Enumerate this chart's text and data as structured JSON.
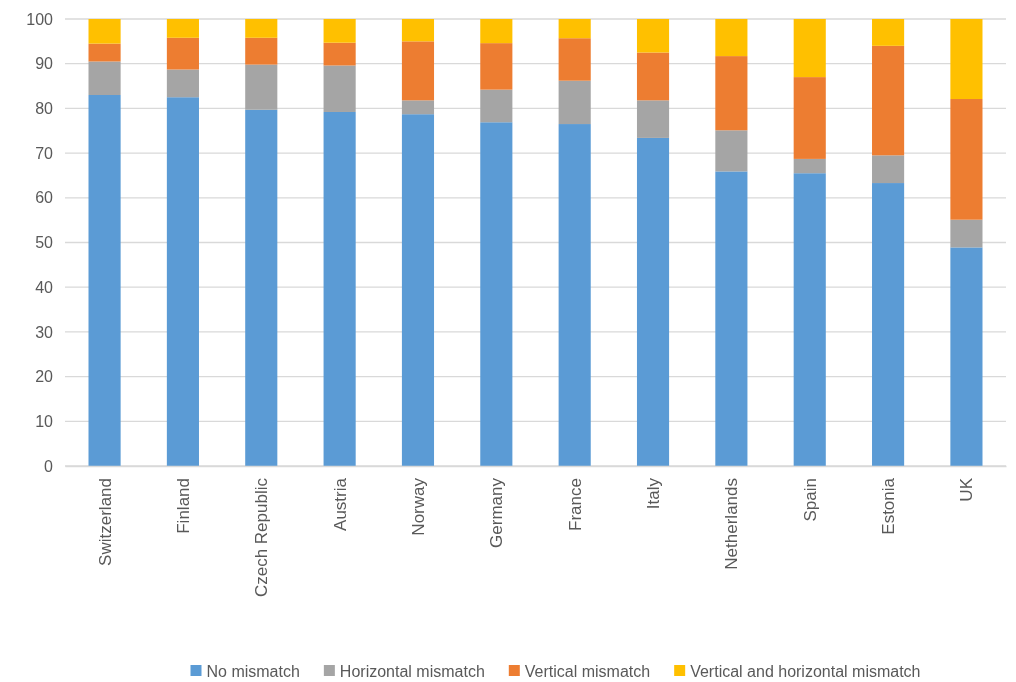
{
  "chart_data": {
    "type": "bar",
    "stacked": true,
    "categories": [
      "Switzerland",
      "Finland",
      "Czech Republic",
      "Austria",
      "Norway",
      "Germany",
      "France",
      "Italy",
      "Netherlands",
      "Spain",
      "Estonia",
      "UK"
    ],
    "series": [
      {
        "name": "No mismatch",
        "color": "#5b9bd5",
        "values": [
          83,
          82.5,
          79.7,
          79.2,
          78.7,
          76.9,
          76.5,
          73.4,
          65.9,
          65.5,
          63.3,
          48.9
        ]
      },
      {
        "name": "Horizontal mismatch",
        "color": "#a5a5a5",
        "values": [
          7.5,
          6.2,
          10.1,
          10.4,
          3.1,
          7.3,
          9.7,
          8.4,
          9.2,
          3.2,
          6.2,
          6.2
        ]
      },
      {
        "name": "Vertical mismatch",
        "color": "#ed7d31",
        "values": [
          4,
          7.1,
          6,
          5.1,
          13.2,
          10.4,
          9.5,
          10.7,
          16.6,
          18.3,
          24.5,
          27
        ]
      },
      {
        "name": "Vertical and horizontal mismatch",
        "color": "#ffc000",
        "values": [
          5.5,
          4.2,
          4.2,
          5.3,
          5,
          5.4,
          4.3,
          7.5,
          8.3,
          13,
          6,
          17.9
        ]
      }
    ],
    "ylim": [
      0,
      100
    ],
    "yticks": [
      0,
      10,
      20,
      30,
      40,
      50,
      60,
      70,
      80,
      90,
      100
    ],
    "grid": "y",
    "legend": "bottom"
  }
}
